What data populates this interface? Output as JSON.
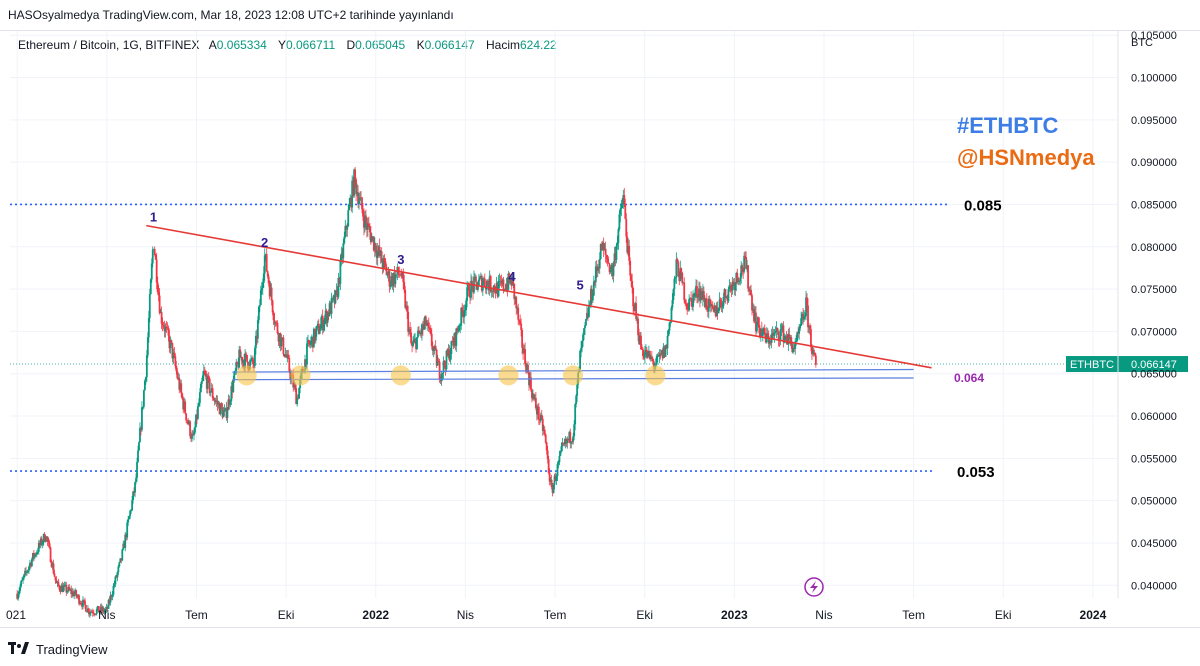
{
  "header": {
    "publish_line": "HASOsyalmedya TradingView.com, Mar 18, 2023 12:08 UTC+2 tarihinde yayınlandı"
  },
  "legend": {
    "symbol": "Ethereum / Bitcoin, 1G, BITFINEX",
    "open_label": "A",
    "open": "0.065334",
    "high_label": "Y",
    "high": "0.066711",
    "low_label": "D",
    "low": "0.065045",
    "close_label": "K",
    "close": "0.066147",
    "volume_label": "Hacim",
    "volume": "624.22"
  },
  "watermarks": {
    "tag": "#ETHBTC",
    "handle": "@HSNmedya"
  },
  "price_badge": {
    "ticker": "ETHBTC",
    "value": "0.066147"
  },
  "footer": {
    "brand": "TradingView"
  },
  "chart_data": {
    "type": "candlestick",
    "axis_unit": "BTC",
    "y_ticks": [
      "0.105000",
      "0.100000",
      "0.095000",
      "0.090000",
      "0.085000",
      "0.080000",
      "0.075000",
      "0.070000",
      "0.065000",
      "0.060000",
      "0.055000",
      "0.050000",
      "0.045000",
      "0.040000"
    ],
    "ylim": [
      0.0385,
      0.1055
    ],
    "x_ticks": [
      {
        "label": "021",
        "t": 0.0
      },
      {
        "label": "Nis",
        "t": 0.25
      },
      {
        "label": "Tem",
        "t": 0.5
      },
      {
        "label": "Eki",
        "t": 0.75
      },
      {
        "label": "2022",
        "t": 1.0
      },
      {
        "label": "Nis",
        "t": 1.25
      },
      {
        "label": "Tem",
        "t": 1.5
      },
      {
        "label": "Eki",
        "t": 1.75
      },
      {
        "label": "2023",
        "t": 2.0
      },
      {
        "label": "Nis",
        "t": 2.25
      },
      {
        "label": "Tem",
        "t": 2.5
      },
      {
        "label": "Eki",
        "t": 2.75
      },
      {
        "label": "2024",
        "t": 3.0
      }
    ],
    "levels": [
      {
        "label": "0.085",
        "value": 0.085,
        "color": "#2962ff"
      },
      {
        "label": "0.053",
        "value": 0.0535,
        "color": "#2962ff"
      }
    ],
    "support_label": "0.064",
    "support_lines": [
      {
        "t1": 0.6,
        "v1": 0.0652,
        "t2": 2.5,
        "v2": 0.0655
      },
      {
        "t1": 0.6,
        "v1": 0.0643,
        "t2": 2.5,
        "v2": 0.0645
      }
    ],
    "trendline": {
      "t1": 0.36,
      "v1": 0.0825,
      "t2": 2.55,
      "v2": 0.0657
    },
    "touch_points": [
      {
        "label": "1",
        "t": 0.38,
        "v": 0.0825
      },
      {
        "label": "2",
        "t": 0.69,
        "v": 0.0795
      },
      {
        "label": "3",
        "t": 1.07,
        "v": 0.0775
      },
      {
        "label": "4",
        "t": 1.38,
        "v": 0.0755
      },
      {
        "label": "5",
        "t": 1.57,
        "v": 0.0745
      }
    ],
    "support_touches": [
      0.64,
      0.79,
      1.07,
      1.37,
      1.55,
      1.78
    ],
    "last_price": 0.066147,
    "path": [
      [
        0.0,
        0.039
      ],
      [
        0.04,
        0.043
      ],
      [
        0.08,
        0.046
      ],
      [
        0.11,
        0.04
      ],
      [
        0.16,
        0.039
      ],
      [
        0.2,
        0.037
      ],
      [
        0.25,
        0.037
      ],
      [
        0.29,
        0.043
      ],
      [
        0.33,
        0.052
      ],
      [
        0.36,
        0.066
      ],
      [
        0.38,
        0.081
      ],
      [
        0.4,
        0.072
      ],
      [
        0.43,
        0.068
      ],
      [
        0.46,
        0.062
      ],
      [
        0.49,
        0.057
      ],
      [
        0.52,
        0.065
      ],
      [
        0.55,
        0.062
      ],
      [
        0.58,
        0.06
      ],
      [
        0.62,
        0.067
      ],
      [
        0.66,
        0.066
      ],
      [
        0.69,
        0.079
      ],
      [
        0.72,
        0.071
      ],
      [
        0.75,
        0.067
      ],
      [
        0.78,
        0.062
      ],
      [
        0.81,
        0.068
      ],
      [
        0.85,
        0.071
      ],
      [
        0.89,
        0.074
      ],
      [
        0.92,
        0.083
      ],
      [
        0.94,
        0.088
      ],
      [
        0.97,
        0.083
      ],
      [
        1.0,
        0.08
      ],
      [
        1.04,
        0.076
      ],
      [
        1.07,
        0.077
      ],
      [
        1.1,
        0.068
      ],
      [
        1.14,
        0.071
      ],
      [
        1.18,
        0.065
      ],
      [
        1.22,
        0.069
      ],
      [
        1.26,
        0.075
      ],
      [
        1.3,
        0.076
      ],
      [
        1.34,
        0.075
      ],
      [
        1.38,
        0.076
      ],
      [
        1.41,
        0.068
      ],
      [
        1.44,
        0.062
      ],
      [
        1.47,
        0.058
      ],
      [
        1.49,
        0.051
      ],
      [
        1.52,
        0.056
      ],
      [
        1.55,
        0.058
      ],
      [
        1.57,
        0.067
      ],
      [
        1.6,
        0.074
      ],
      [
        1.63,
        0.08
      ],
      [
        1.66,
        0.077
      ],
      [
        1.69,
        0.086
      ],
      [
        1.71,
        0.076
      ],
      [
        1.74,
        0.068
      ],
      [
        1.78,
        0.066
      ],
      [
        1.81,
        0.068
      ],
      [
        1.84,
        0.078
      ],
      [
        1.87,
        0.073
      ],
      [
        1.9,
        0.075
      ],
      [
        1.94,
        0.072
      ],
      [
        1.97,
        0.074
      ],
      [
        2.0,
        0.076
      ],
      [
        2.03,
        0.078
      ],
      [
        2.06,
        0.071
      ],
      [
        2.09,
        0.069
      ],
      [
        2.13,
        0.07
      ],
      [
        2.17,
        0.068
      ],
      [
        2.2,
        0.073
      ],
      [
        2.22,
        0.067
      ],
      [
        2.23,
        0.0655
      ]
    ],
    "grid": true
  }
}
